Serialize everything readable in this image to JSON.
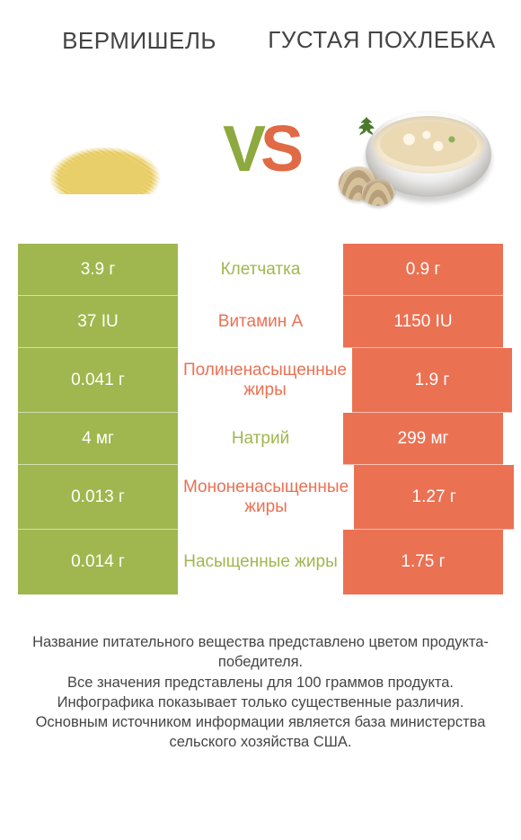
{
  "colors": {
    "left": "#9fb74e",
    "right": "#eb7153",
    "mid_text_left": "#9fb74e",
    "mid_text_right": "#eb7153",
    "title": "#444444",
    "footer": "#454545"
  },
  "titles": {
    "left": "ВЕРМИШЕЛЬ",
    "right": "ГУСТАЯ ПОХЛЕБКА"
  },
  "vs": {
    "v": "V",
    "s": "S"
  },
  "rows": [
    {
      "left": "3.9 г",
      "mid": "Клетчатка",
      "right": "0.9 г",
      "winner": "left",
      "tall": false
    },
    {
      "left": "37 IU",
      "mid": "Витамин A",
      "right": "1150 IU",
      "winner": "right",
      "tall": false
    },
    {
      "left": "0.041 г",
      "mid": "Полиненасыщенные жиры",
      "right": "1.9 г",
      "winner": "right",
      "tall": true
    },
    {
      "left": "4 мг",
      "mid": "Натрий",
      "right": "299 мг",
      "winner": "left",
      "tall": false
    },
    {
      "left": "0.013 г",
      "mid": "Мононенасыщенные жиры",
      "right": "1.27 г",
      "winner": "right",
      "tall": true
    },
    {
      "left": "0.014 г",
      "mid": "Насыщенные жиры",
      "right": "1.75 г",
      "winner": "left",
      "tall": true
    }
  ],
  "footer": [
    "Название питательного вещества представлено цветом продукта-победителя.",
    "Все значения представлены для 100 граммов продукта.",
    "Инфографика показывает только существенные различия.",
    "Основным источником информации является база министерства сельского хозяйства США."
  ]
}
